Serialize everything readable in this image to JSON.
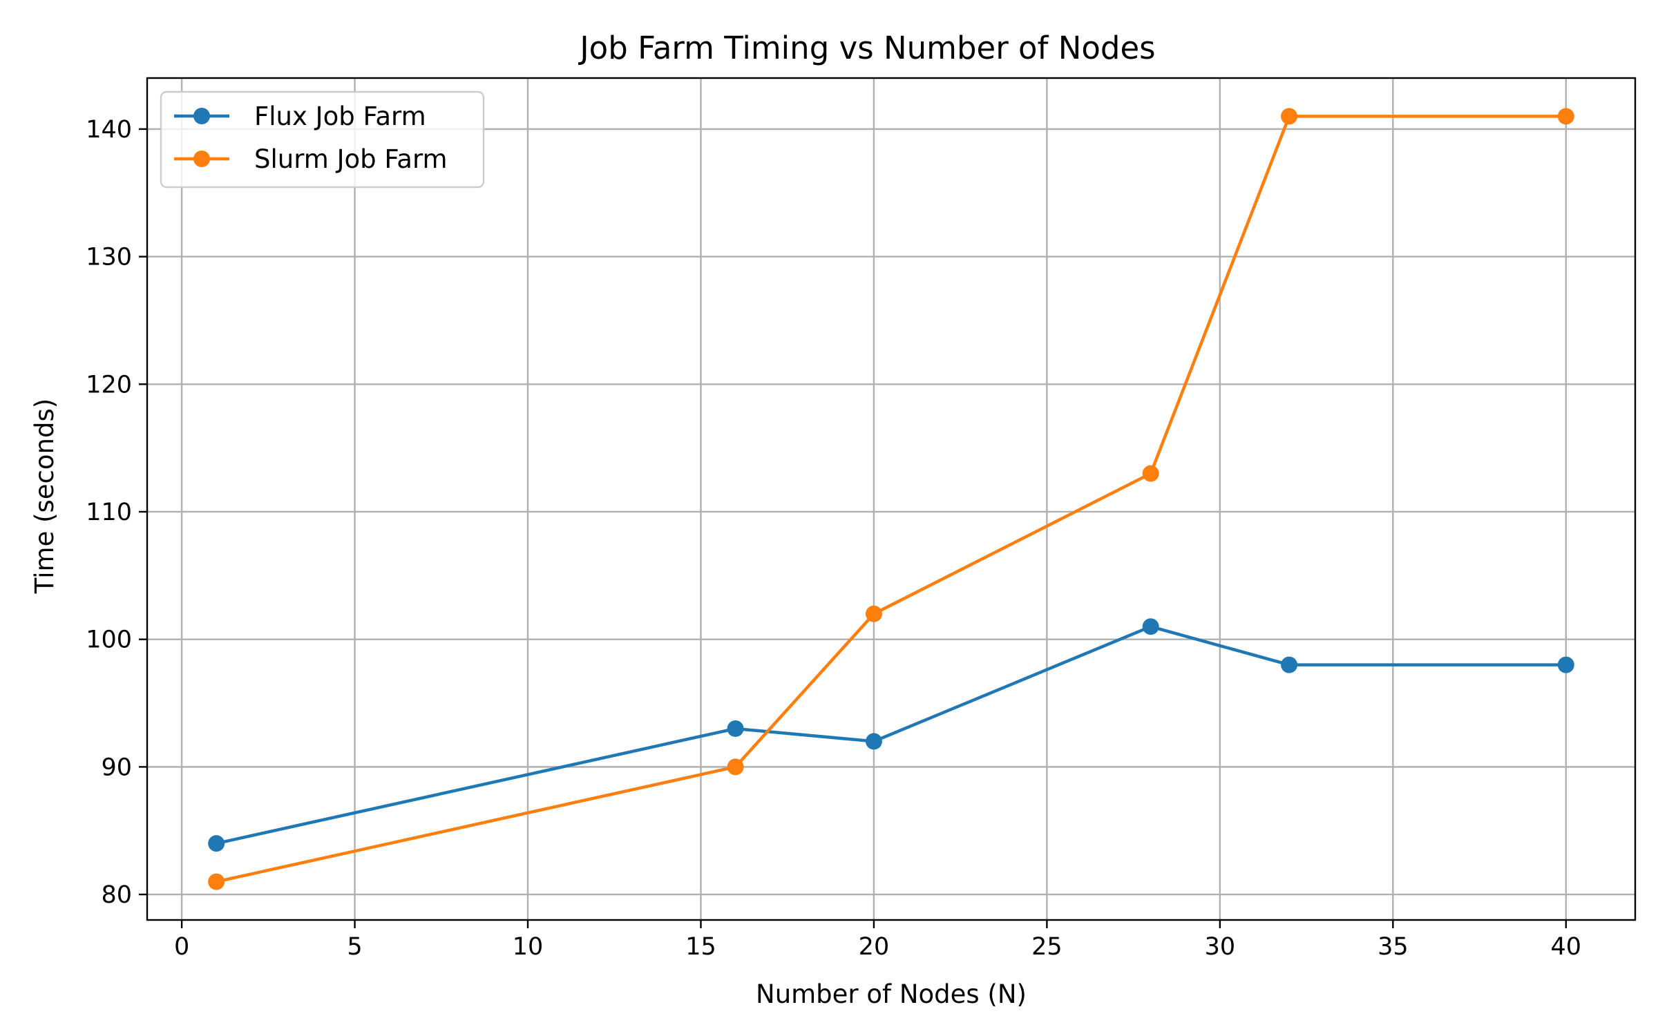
{
  "chart_data": {
    "type": "line",
    "title": "Job Farm Timing vs Number of Nodes",
    "xlabel": "Number of Nodes (N)",
    "ylabel": "Time (seconds)",
    "xlim": [
      -1,
      42
    ],
    "ylim": [
      78,
      144
    ],
    "xticks": [
      0,
      5,
      10,
      15,
      20,
      25,
      30,
      35,
      40
    ],
    "yticks": [
      80,
      90,
      100,
      110,
      120,
      130,
      140
    ],
    "grid": true,
    "legend_position": "top-left",
    "x": [
      1,
      16,
      20,
      28,
      32,
      40
    ],
    "series": [
      {
        "name": "Flux Job Farm",
        "color": "#1f77b4",
        "values": [
          84,
          93,
          92,
          101,
          98,
          98
        ]
      },
      {
        "name": "Slurm Job Farm",
        "color": "#ff7f0e",
        "values": [
          81,
          90,
          102,
          113,
          141,
          141
        ]
      }
    ]
  }
}
